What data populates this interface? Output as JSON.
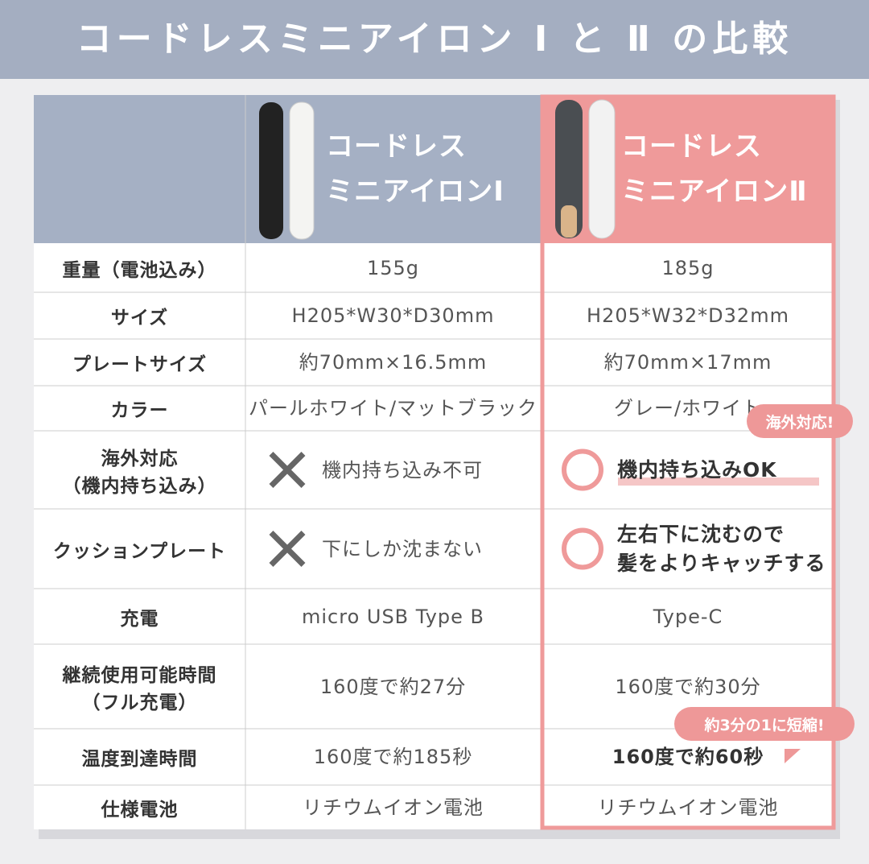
{
  "header": {
    "title": "コードレスミニアイロン Ⅰ と Ⅱ の比較"
  },
  "table": {
    "columns": [
      [
        "コードレス",
        "ミニアイロンⅠ"
      ],
      [
        "コードレス",
        "ミニアイロンⅡ"
      ]
    ],
    "rows": [
      {
        "label": [
          "重量（電池込み）"
        ],
        "col1": [
          "155g"
        ],
        "col2": [
          "185g"
        ]
      },
      {
        "label": [
          "サイズ"
        ],
        "col1": [
          "H205*W30*D30mm"
        ],
        "col2": [
          "H205*W32*D32mm"
        ]
      },
      {
        "label": [
          "プレートサイズ"
        ],
        "col1": [
          "約70mm×16.5mm"
        ],
        "col2": [
          "約70mm×17mm"
        ]
      },
      {
        "label": [
          "カラー"
        ],
        "col1": [
          "パールホワイト/マットブラック"
        ],
        "col2": [
          "グレー/ホワイト"
        ]
      },
      {
        "label": [
          "海外対応",
          "（機内持ち込み）"
        ],
        "col1": [
          "機内持ち込み不可"
        ],
        "col2": [
          "機内持ち込みOK"
        ]
      },
      {
        "label": [
          "クッションプレート"
        ],
        "col1": [
          "下にしか沈まない"
        ],
        "col2": [
          "左右下に沈むので",
          "髪をよりキャッチする"
        ]
      },
      {
        "label": [
          "充電"
        ],
        "col1": [
          "micro USB Type B"
        ],
        "col2": [
          "Type-C"
        ]
      },
      {
        "label": [
          "継続使用可能時間",
          "（フル充電）"
        ],
        "col1": [
          "160度で約27分"
        ],
        "col2": [
          "160度で約30分"
        ]
      },
      {
        "label": [
          "温度到達時間"
        ],
        "col1": [
          "160度で約185秒"
        ],
        "col2": [
          "160度で約60秒"
        ]
      },
      {
        "label": [
          "仕様電池"
        ],
        "col1": [
          "リチウムイオン電池"
        ],
        "col2": [
          "リチウムイオン電池"
        ]
      }
    ]
  },
  "badges": [
    "海外対応!",
    "約3分の1に短縮!"
  ]
}
